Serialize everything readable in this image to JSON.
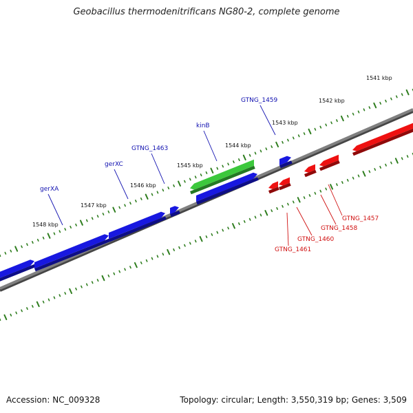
{
  "header": {
    "title": "Geobacillus thermodenitrificans NG80-2, complete genome"
  },
  "footer": {
    "accession": "Accession: NC_009328",
    "summary": "Topology: circular; Length: 3,550,319 bp; Genes: 3,509"
  },
  "colors": {
    "backbone": "#808080",
    "ticks": "#2e7d1e",
    "forward_gene": "#1818e0",
    "reverse_gene": "#ee1111",
    "highlighted_gene": "#3cc83c",
    "forward_label": "#1010b0",
    "reverse_label": "#d01010"
  },
  "scale_labels": [
    "1541 kbp",
    "1542 kbp",
    "1543 kbp",
    "1544 kbp",
    "1545 kbp",
    "1546 kbp",
    "1547 kbp",
    "1548 kbp"
  ],
  "forward_gene_labels": [
    "gerXA",
    "gerXC",
    "GTNG_1463",
    "kinB",
    "GTNG_1459"
  ],
  "reverse_gene_labels": [
    "GTNG_1457",
    "GTNG_1458",
    "GTNG_1460",
    "GTNG_1461"
  ]
}
